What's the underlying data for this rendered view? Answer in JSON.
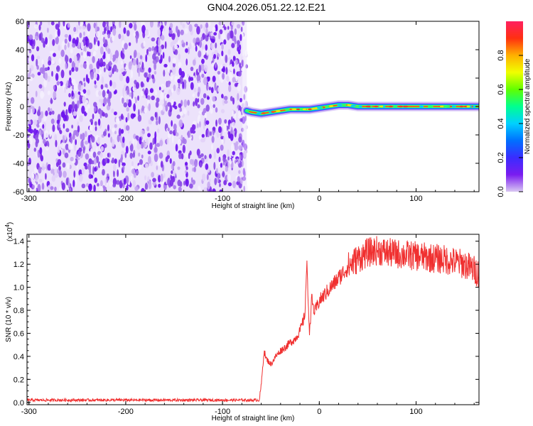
{
  "title": "GN04.2026.051.22.12.E21",
  "chart_data": [
    {
      "type": "heatmap",
      "xlabel": "Height of straight line (km)",
      "ylabel": "Frequency (Hz)",
      "xlim": [
        -302,
        165
      ],
      "ylim": [
        -60,
        60
      ],
      "xticks": [
        -300,
        -200,
        -100,
        0,
        100
      ],
      "yticks": [
        -60,
        -40,
        -20,
        0,
        20,
        40,
        60
      ],
      "noise_region_x": [
        -302,
        -75
      ],
      "signal_ridge": [
        {
          "x": -75,
          "y": -3
        },
        {
          "x": -70,
          "y": -4
        },
        {
          "x": -60,
          "y": -5
        },
        {
          "x": -50,
          "y": -4
        },
        {
          "x": -40,
          "y": -3
        },
        {
          "x": -30,
          "y": -2
        },
        {
          "x": -20,
          "y": -2
        },
        {
          "x": -10,
          "y": -2
        },
        {
          "x": 0,
          "y": -1
        },
        {
          "x": 10,
          "y": 0
        },
        {
          "x": 20,
          "y": 1
        },
        {
          "x": 30,
          "y": 1
        },
        {
          "x": 40,
          "y": 0
        },
        {
          "x": 60,
          "y": 0
        },
        {
          "x": 80,
          "y": 0
        },
        {
          "x": 100,
          "y": 0
        },
        {
          "x": 120,
          "y": 0
        },
        {
          "x": 140,
          "y": 0
        },
        {
          "x": 165,
          "y": 0
        }
      ],
      "colorbar": {
        "label": "Normalized spectral amplitude",
        "range": [
          0,
          1
        ],
        "ticks": [
          "0.0",
          "0.2",
          "0.4",
          "0.6",
          "0.8"
        ],
        "stops": [
          "#d9c8f2",
          "#7a1cf0",
          "#3a2cff",
          "#0070ff",
          "#00d0ff",
          "#00ff90",
          "#60ff00",
          "#f0ff00",
          "#ffb000",
          "#ff3010",
          "#ff2060"
        ]
      }
    },
    {
      "type": "line",
      "xlabel": "Height of straight line (km)",
      "ylabel": "SNR (10 * v/v)",
      "yscale_label": "(x10",
      "yscale_exp": "4",
      "xlim": [
        -302,
        165
      ],
      "ylim": [
        -0.02,
        1.46
      ],
      "xticks": [
        -300,
        -200,
        -100,
        0,
        100
      ],
      "yticks": [
        "0.0",
        "0.2",
        "0.4",
        "0.6",
        "0.8",
        "1.0",
        "1.2",
        "1.4"
      ],
      "line_color": "#f03030",
      "series": [
        {
          "x": [
            -302,
            -250,
            -200,
            -150,
            -100,
            -70,
            -62,
            -60,
            -57,
            -55,
            -50,
            -45,
            -40,
            -35,
            -30,
            -25,
            -20,
            -15,
            -13,
            -10,
            -8,
            -5,
            0,
            10,
            20,
            30,
            40,
            50,
            60,
            70,
            80,
            90,
            100,
            110,
            120,
            130,
            140,
            150,
            160,
            165
          ],
          "y": [
            0.02,
            0.02,
            0.02,
            0.02,
            0.02,
            0.02,
            0.02,
            0.15,
            0.45,
            0.38,
            0.33,
            0.4,
            0.45,
            0.48,
            0.52,
            0.55,
            0.62,
            0.75,
            1.2,
            0.6,
            0.9,
            0.78,
            0.88,
            0.98,
            1.08,
            1.18,
            1.25,
            1.3,
            1.32,
            1.3,
            1.29,
            1.28,
            1.27,
            1.26,
            1.25,
            1.24,
            1.22,
            1.2,
            1.15,
            1.12
          ]
        }
      ]
    }
  ]
}
